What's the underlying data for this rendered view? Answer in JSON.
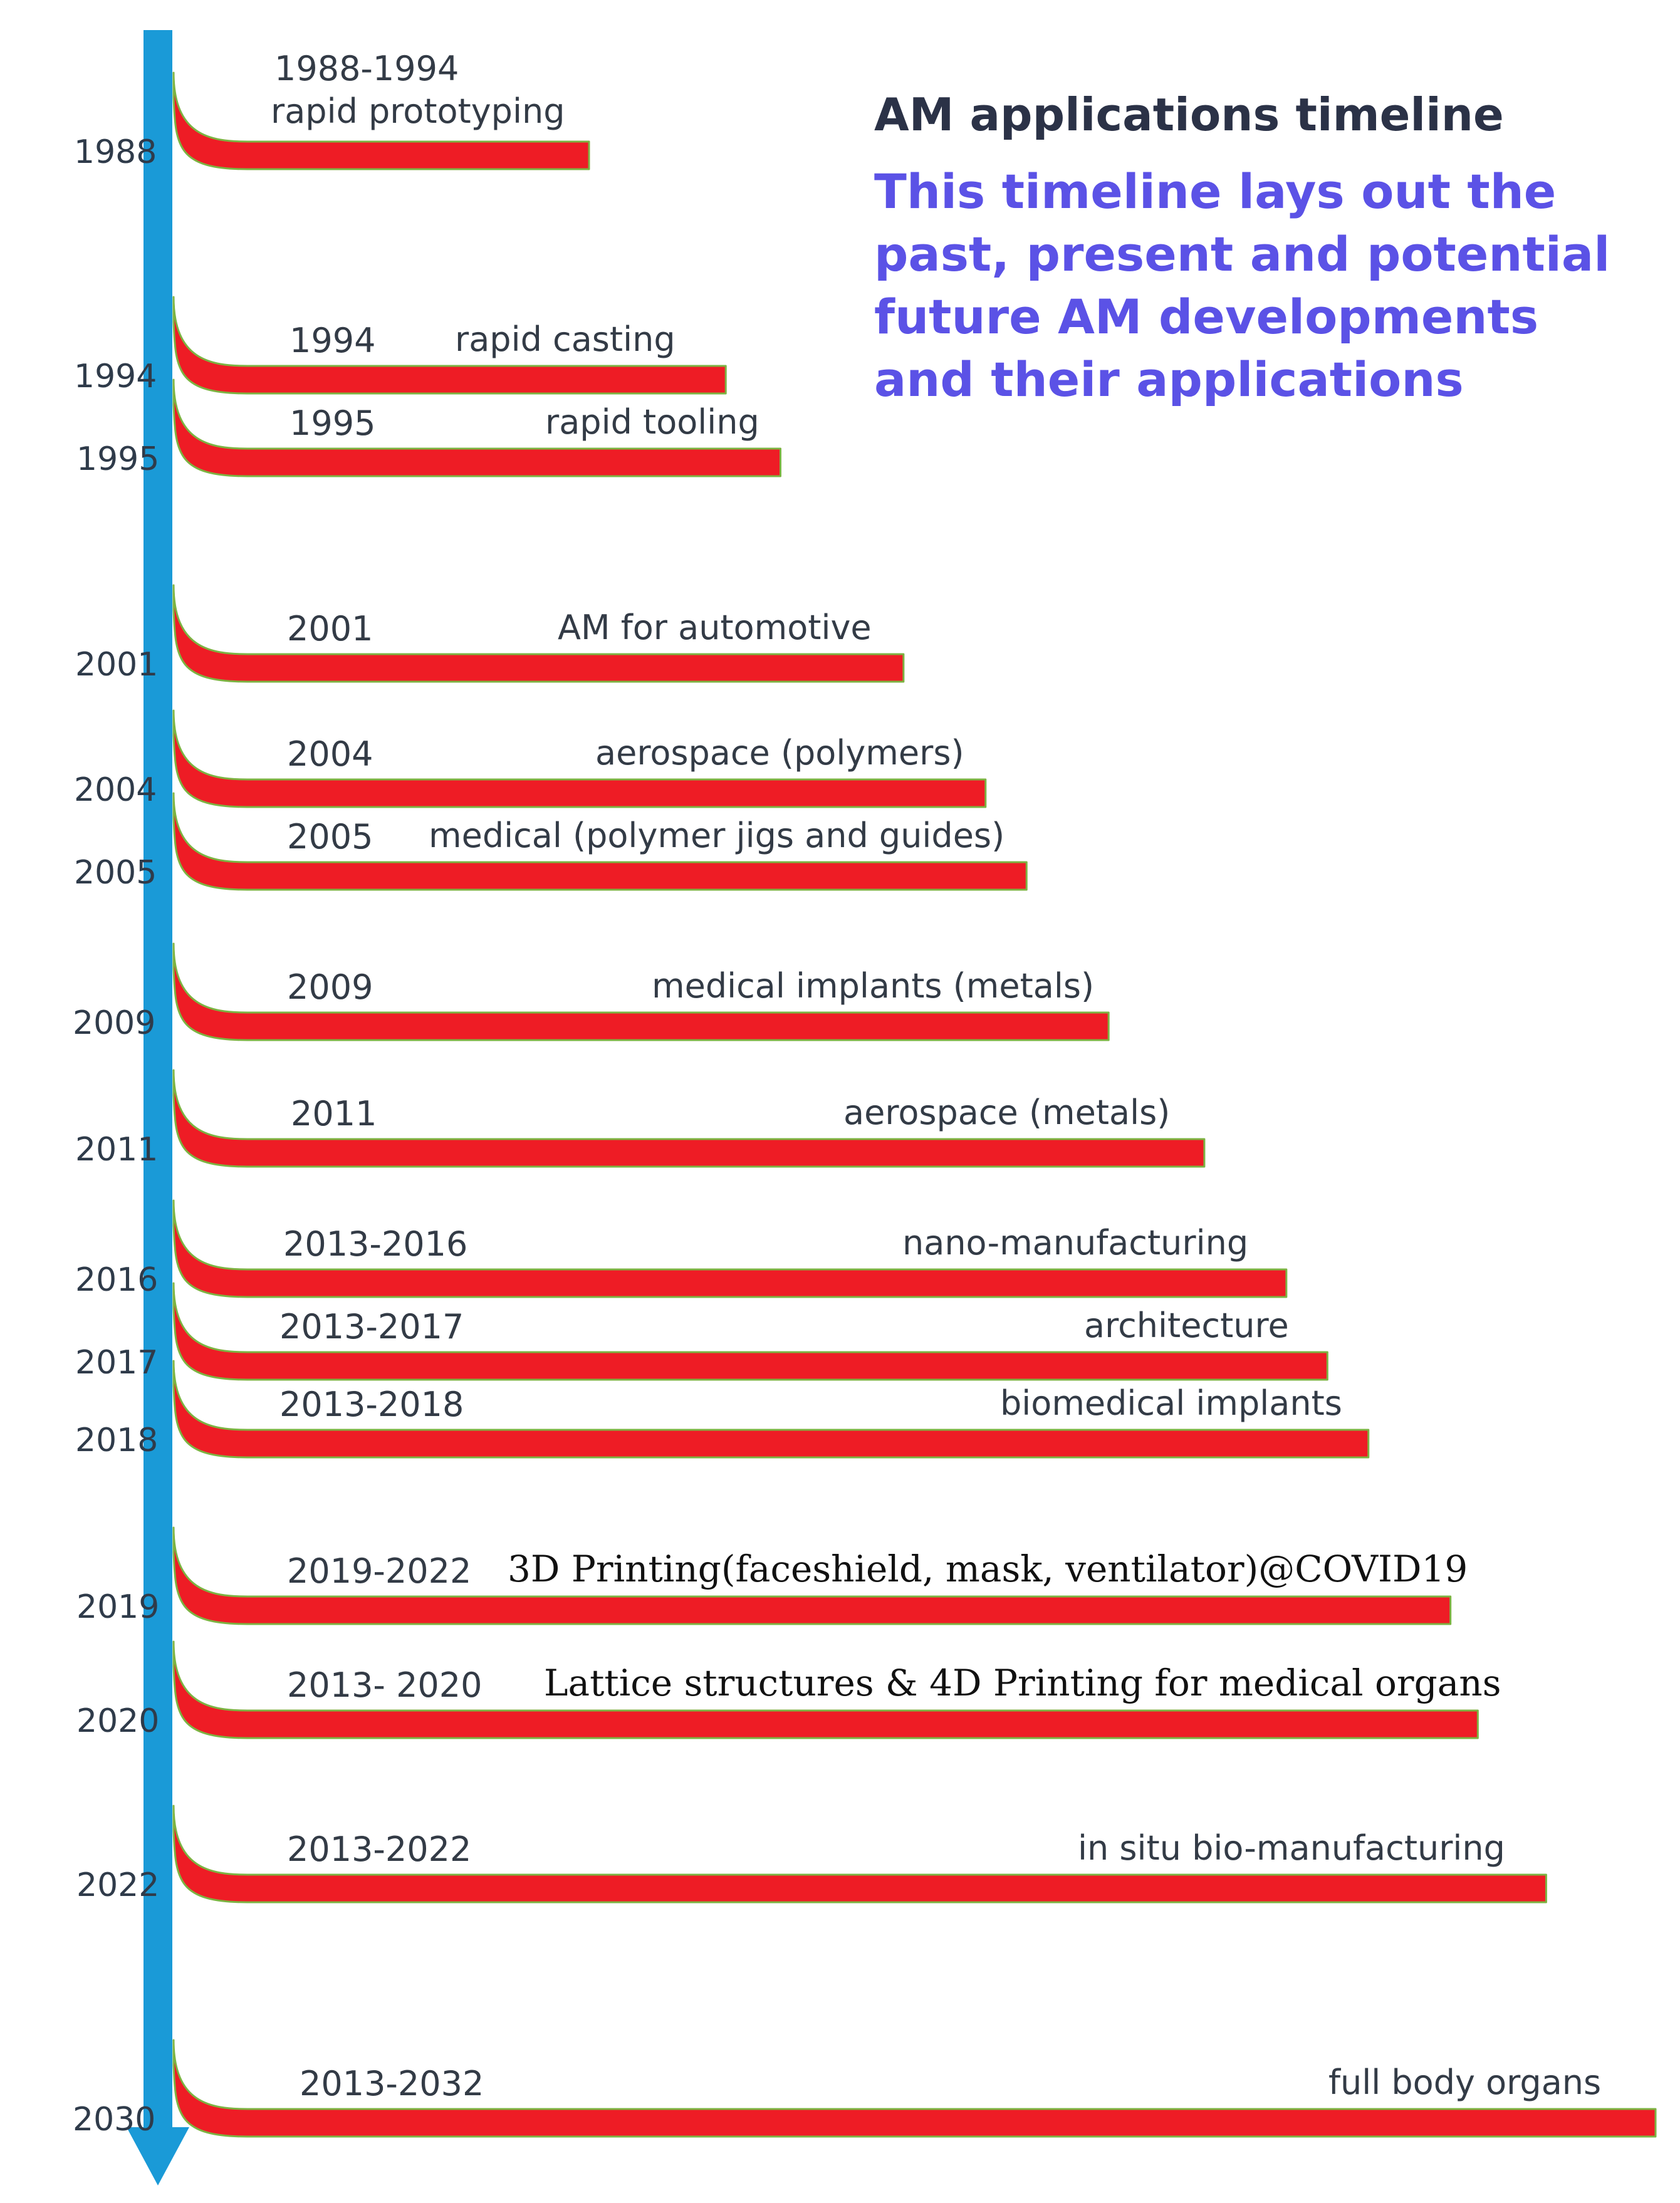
{
  "title": "AM applications timeline",
  "description_lines": [
    "This timeline lays out the",
    "past, present and potential",
    "future AM developments",
    "and their applications"
  ],
  "colors": {
    "axis": "#1a9ad7",
    "bar": "#ee1c25",
    "bar_edge": "#7cb342",
    "title": "#2b3247",
    "description": "#5b52e6"
  },
  "entries": [
    {
      "year": "1988",
      "range": "1988-1994",
      "application": "rapid prototyping",
      "bar_length": 0.22
    },
    {
      "year": "1994",
      "range": "1994",
      "application": "rapid casting",
      "bar_length": 0.32
    },
    {
      "year": "1995",
      "range": "1995",
      "application": "rapid tooling",
      "bar_length": 0.36
    },
    {
      "year": "2001",
      "range": "2001",
      "application": "AM for automotive",
      "bar_length": 0.45
    },
    {
      "year": "2004",
      "range": "2004",
      "application": "aerospace (polymers)",
      "bar_length": 0.51
    },
    {
      "year": "2005",
      "range": "2005",
      "application": "medical (polymer jigs and guides)",
      "bar_length": 0.54
    },
    {
      "year": "2009",
      "range": "2009",
      "application": "medical implants (metals)",
      "bar_length": 0.6
    },
    {
      "year": "2011",
      "range": "2011",
      "application": "aerospace (metals)",
      "bar_length": 0.67
    },
    {
      "year": "2016",
      "range": "2013-2016",
      "application": "nano-manufacturing",
      "bar_length": 0.73
    },
    {
      "year": "2017",
      "range": "2013-2017",
      "application": "architecture",
      "bar_length": 0.76
    },
    {
      "year": "2018",
      "range": "2013-2018",
      "application": "biomedical implants",
      "bar_length": 0.79
    },
    {
      "year": "2019",
      "range": "2019-2022",
      "application": "3D Printing(faceshield, mask, ventilator)@COVID19",
      "bar_length": 0.85
    },
    {
      "year": "2020",
      "range": "2013- 2020",
      "application": "Lattice structures & 4D Printing for medical organs",
      "bar_length": 0.87
    },
    {
      "year": "2022",
      "range": "2013-2022",
      "application": "in situ bio-manufacturing",
      "bar_length": 0.92
    },
    {
      "year": "2030",
      "range": "2013-2032",
      "application": "full body organs",
      "bar_length": 1.0
    }
  ]
}
